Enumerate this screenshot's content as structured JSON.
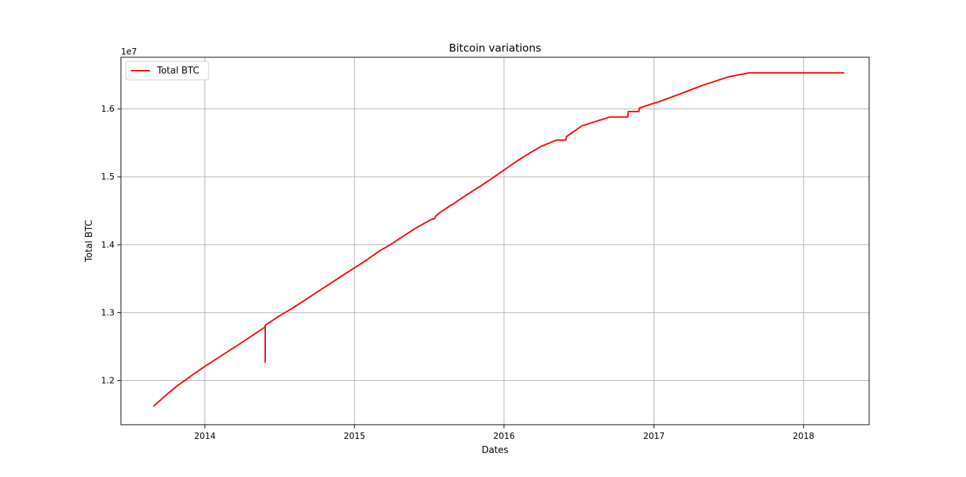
{
  "chart_data": {
    "type": "line",
    "title": "Bitcoin variations",
    "xlabel": "Dates",
    "ylabel": "Total BTC",
    "y_offset_label": "1e7",
    "x_ticks": [
      "2014",
      "2015",
      "2016",
      "2017",
      "2018"
    ],
    "y_ticks": [
      "1.2",
      "1.3",
      "1.4",
      "1.5",
      "1.6"
    ],
    "x_range": [
      "2013-06-10",
      "2018-06-10"
    ],
    "y_range": [
      11350000,
      16760000
    ],
    "grid": true,
    "legend_position": "top-left",
    "series": [
      {
        "name": "Total BTC",
        "color": "#ff0000",
        "x": [
          "2013-08-28",
          "2013-10-01",
          "2013-10-25",
          "2013-12-01",
          "2014-01-01",
          "2014-02-01",
          "2014-03-01",
          "2014-04-01",
          "2014-05-01",
          "2014-05-28",
          "2014-05-28",
          "2014-05-28",
          "2014-06-01",
          "2014-07-01",
          "2014-08-01",
          "2014-09-01",
          "2014-10-01",
          "2014-11-01",
          "2014-12-01",
          "2015-01-01",
          "2015-02-01",
          "2015-03-01",
          "2015-04-01",
          "2015-05-01",
          "2015-06-01",
          "2015-07-10",
          "2015-07-15",
          "2015-07-18",
          "2015-08-01",
          "2015-09-01",
          "2015-10-01",
          "2015-11-01",
          "2015-12-01",
          "2016-01-01",
          "2016-02-01",
          "2016-03-01",
          "2016-04-01",
          "2016-05-08",
          "2016-05-31",
          "2016-06-01",
          "2016-07-09",
          "2016-09-15",
          "2016-10-29",
          "2016-10-30",
          "2016-11-25",
          "2016-11-26",
          "2016-12-15",
          "2017-01-15",
          "2017-03-01",
          "2017-05-01",
          "2017-07-01",
          "2017-08-20",
          "2017-10-01",
          "2018-01-01",
          "2018-04-10"
        ],
        "values": [
          11620000,
          11800000,
          11920000,
          12080000,
          12210000,
          12330000,
          12440000,
          12560000,
          12680000,
          12790000,
          12270000,
          12810000,
          12830000,
          12950000,
          13060000,
          13180000,
          13300000,
          13420000,
          13540000,
          13660000,
          13780000,
          13900000,
          14010000,
          14130000,
          14250000,
          14380000,
          14380000,
          14420000,
          14490000,
          14610000,
          14730000,
          14850000,
          14970000,
          15100000,
          15230000,
          15340000,
          15450000,
          15540000,
          15540000,
          15590000,
          15750000,
          15880000,
          15880000,
          15960000,
          15960000,
          16010000,
          16050000,
          16110000,
          16210000,
          16350000,
          16470000,
          16530000,
          16530000,
          16530000,
          16530000
        ]
      }
    ]
  }
}
